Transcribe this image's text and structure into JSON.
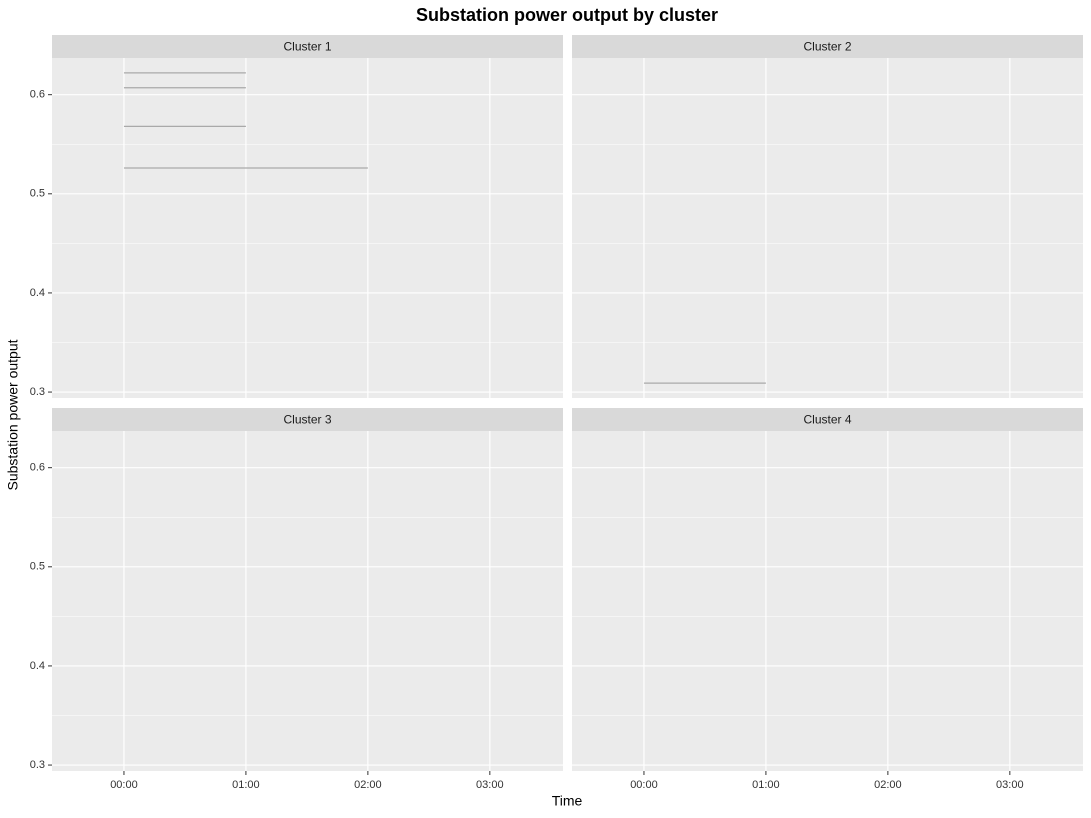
{
  "chart_data": {
    "type": "line",
    "title": "Substation power output by cluster",
    "x_label": "Time",
    "y_label": "Substation power output",
    "color": "#a9a9a9",
    "xlim": [
      -0.59,
      3.6
    ],
    "xticks": [
      {
        "value": 0,
        "label": "00:00"
      },
      {
        "value": 1,
        "label": "01:00"
      },
      {
        "value": 2,
        "label": "02:00"
      },
      {
        "value": 3,
        "label": "03:00"
      }
    ],
    "ylim": [
      0.294,
      0.637
    ],
    "yticks": [
      0.3,
      0.4,
      0.5,
      0.6
    ],
    "y_minor_ticks": [
      0.35,
      0.45,
      0.55
    ],
    "grid": true,
    "panels": [
      {
        "name": "Cluster 1",
        "series": [
          {
            "x": [
              0,
              1
            ],
            "values": [
              0.622,
              0.622
            ]
          },
          {
            "x": [
              0,
              1
            ],
            "values": [
              0.607,
              0.607
            ]
          },
          {
            "x": [
              0,
              1
            ],
            "values": [
              0.568,
              0.568
            ]
          },
          {
            "x": [
              0,
              2
            ],
            "values": [
              0.526,
              0.526
            ]
          }
        ]
      },
      {
        "name": "Cluster 2",
        "series": [
          {
            "x": [
              0,
              1
            ],
            "values": [
              0.309,
              0.309
            ]
          }
        ]
      },
      {
        "name": "Cluster 3",
        "series": []
      },
      {
        "name": "Cluster 4",
        "series": []
      }
    ]
  }
}
